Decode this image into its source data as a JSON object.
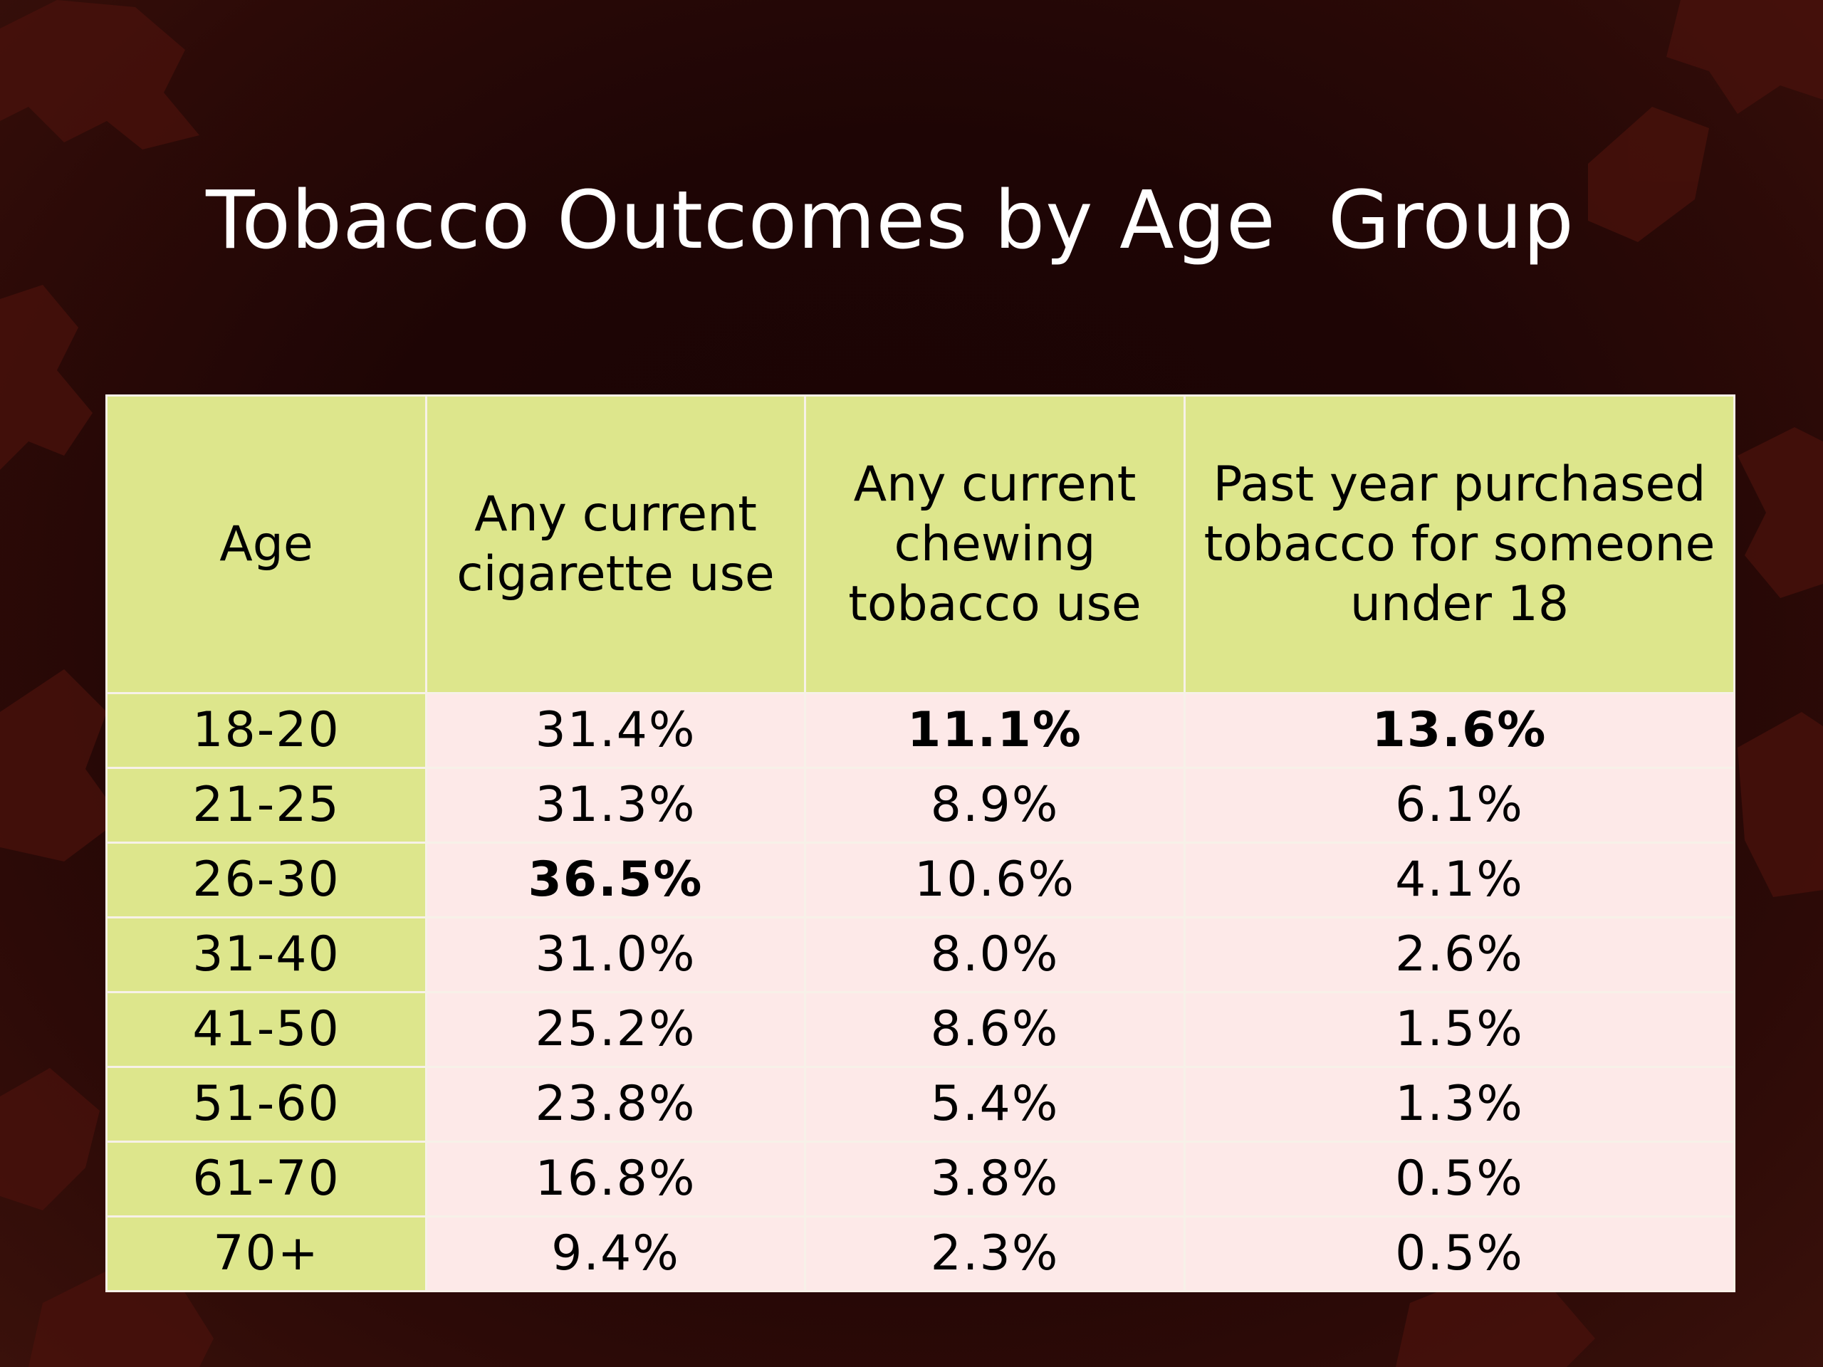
{
  "slide": {
    "title": "Tobacco Outcomes by Age  Group"
  },
  "table": {
    "headers": [
      "Age",
      "Any current cigarette use",
      "Any current chewing tobacco use",
      "Past year purchased tobacco for someone under 18"
    ],
    "rows": [
      [
        "18-20",
        "31.4%",
        "11.1%",
        "13.6%"
      ],
      [
        "21-25",
        "31.3%",
        "8.9%",
        "6.1%"
      ],
      [
        "26-30",
        "36.5%",
        "10.6%",
        "4.1%"
      ],
      [
        "31-40",
        "31.0%",
        "8.0%",
        "2.6%"
      ],
      [
        "41-50",
        "25.2%",
        "8.6%",
        "1.5%"
      ],
      [
        "51-60",
        "23.8%",
        "5.4%",
        "1.3%"
      ],
      [
        "61-70",
        "16.8%",
        "3.8%",
        "0.5%"
      ],
      [
        "70+",
        "9.4%",
        "2.3%",
        "0.5%"
      ]
    ],
    "bold_cells": [
      "0.2",
      "0.3",
      "2.1"
    ]
  },
  "colors": {
    "header_fill": "#dde68c",
    "age_fill": "#dde68c",
    "cell_fill": "#fde9e8",
    "background": "#1e0505",
    "leaf": "#5a170f"
  }
}
